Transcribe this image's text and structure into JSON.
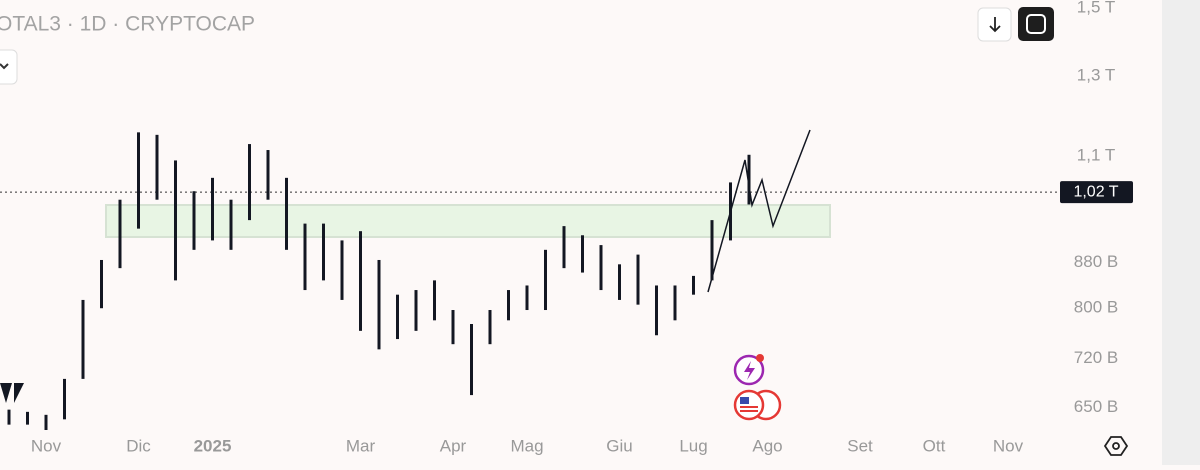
{
  "chart_data": {
    "type": "ohlc",
    "title": "OTAL3 · 1D · CRYPTOCAP",
    "log_scale": true,
    "color": "#131722",
    "ylim": [
      620,
      1525
    ],
    "yticks": [
      {
        "value": 1500,
        "label": "1,5 T"
      },
      {
        "value": 1300,
        "label": "1,3 T"
      },
      {
        "value": 1100,
        "label": "1,1 T"
      },
      {
        "value": 880,
        "label": "880 B"
      },
      {
        "value": 800,
        "label": "800 B"
      },
      {
        "value": 720,
        "label": "720 B"
      },
      {
        "value": 650,
        "label": "650 B"
      }
    ],
    "last_value": 1020,
    "last_value_label": "1,02 T",
    "categories": [
      null,
      null,
      "Nov",
      null,
      null,
      null,
      null,
      "Dic",
      null,
      null,
      null,
      "2025",
      null,
      null,
      null,
      null,
      null,
      null,
      null,
      "Mar",
      null,
      null,
      null,
      null,
      "Apr",
      null,
      null,
      null,
      "Mag",
      null,
      null,
      null,
      null,
      "Giu",
      null,
      null,
      null,
      "Lug",
      null,
      null,
      null,
      "Ago",
      null,
      null,
      null,
      null,
      "Set",
      null,
      null,
      null,
      "Ott",
      null,
      null,
      null,
      "Nov"
    ],
    "low": [
      627,
      627,
      620,
      634,
      690,
      800,
      870,
      945,
      1004,
      848,
      904,
      922,
      904,
      962,
      1004,
      904,
      831,
      848,
      814,
      763,
      734,
      750,
      763,
      780,
      742,
      667,
      742,
      780,
      797,
      797,
      870,
      862,
      831,
      814,
      806,
      756,
      780,
      823,
      848,
      922,
      994,
      null,
      null,
      null,
      null,
      null,
      null,
      null,
      null,
      null,
      null,
      null,
      null,
      null,
      null
    ],
    "high": [
      647,
      644,
      640,
      690,
      814,
      885,
      1004,
      1156,
      1150,
      1090,
      1022,
      1051,
      1004,
      1128,
      1114,
      1051,
      955,
      955,
      922,
      940,
      885,
      823,
      831,
      848,
      797,
      774,
      797,
      831,
      839,
      904,
      950,
      932,
      913,
      877,
      895,
      839,
      839,
      856,
      962,
      1041,
      1103,
      null,
      null,
      null,
      null,
      null,
      null,
      null,
      null,
      null,
      null,
      null,
      null,
      null,
      null
    ]
  }
}
